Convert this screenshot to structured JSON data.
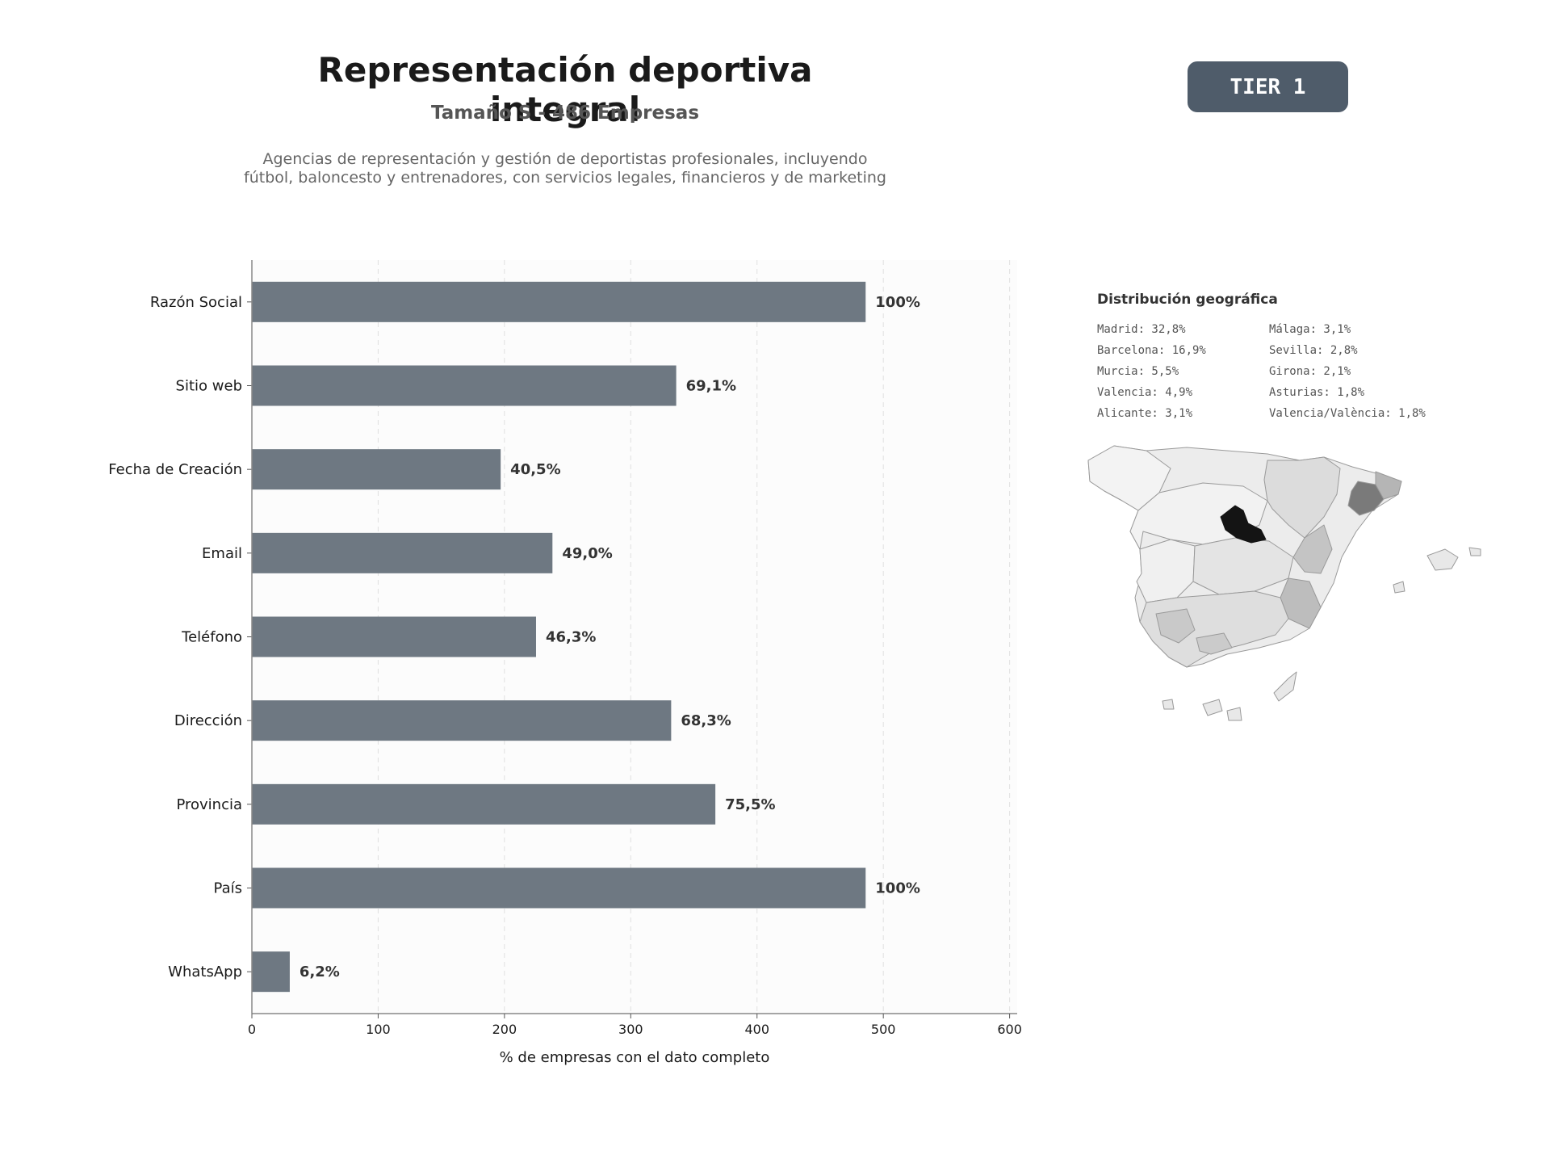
{
  "header": {
    "title": "Representación deportiva integral",
    "subtitle": "Tamaño S - 486 Empresas",
    "description": "Agencias de representación y gestión de deportistas profesionales, incluyendo fútbol, baloncesto y entrenadores, con servicios legales, financieros y de marketing",
    "badge": "TIER 1"
  },
  "chart_data": {
    "type": "bar",
    "orientation": "horizontal",
    "categories": [
      "Razón Social",
      "Sitio web",
      "Fecha de Creación",
      "Email",
      "Teléfono",
      "Dirección",
      "Provincia",
      "País",
      "WhatsApp"
    ],
    "values": [
      486,
      336,
      197,
      238,
      225,
      332,
      367,
      486,
      30
    ],
    "data_labels": [
      "100%",
      "69,1%",
      "40,5%",
      "49,0%",
      "46,3%",
      "68,3%",
      "75,5%",
      "100%",
      "6,2%"
    ],
    "xlabel": "% de empresas con el dato completo",
    "ylabel": "",
    "xlim": [
      0,
      606
    ],
    "xticks": [
      0,
      100,
      200,
      300,
      400,
      500,
      600
    ],
    "grid": "vertical dashed",
    "bar_color": "#6e7882"
  },
  "geo": {
    "title": "Distribución geográfica",
    "items": [
      "Madrid: 32,8%",
      "Málaga: 3,1%",
      "Barcelona: 16,9%",
      "Sevilla: 2,8%",
      "Murcia: 5,5%",
      "Girona: 2,1%",
      "Valencia: 4,9%",
      "Asturias: 1,8%",
      "Alicante: 3,1%",
      "Valencia/València: 1,8%"
    ]
  }
}
